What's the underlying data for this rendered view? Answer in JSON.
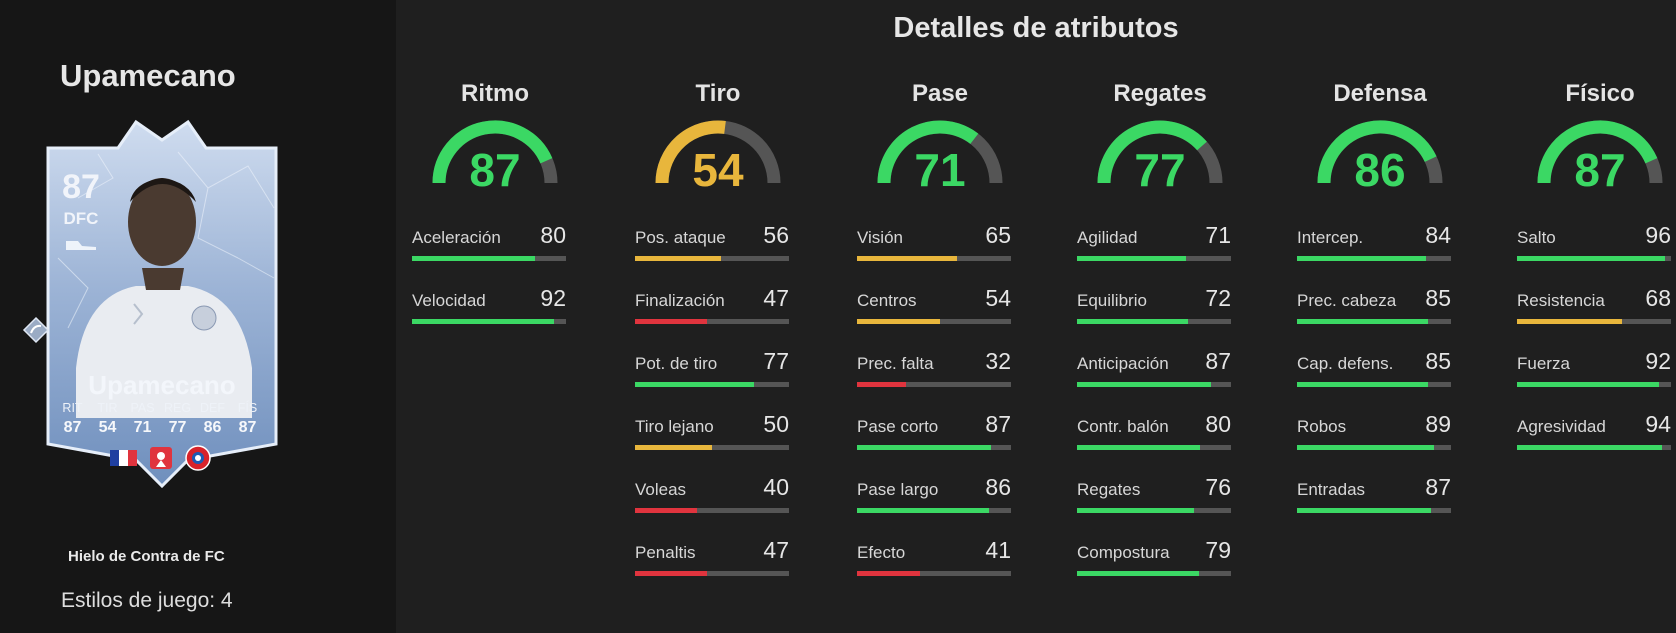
{
  "player": {
    "name": "Upamecano",
    "rating": "87",
    "position": "DFC",
    "card_name": "Upamecano",
    "stat_labels": [
      "RIT",
      "TIR",
      "PAS",
      "REG",
      "DEF",
      "FÍS"
    ],
    "stat_values": [
      "87",
      "54",
      "71",
      "77",
      "86",
      "87"
    ],
    "promo": "Hielo de Contra de FC",
    "playstyles": "Estilos de juego: 4"
  },
  "title": "Detalles de atributos",
  "colors": {
    "high": "#3bd864",
    "mid": "#e8b63c",
    "low": "#e0343e",
    "track": "#555555"
  },
  "categories": [
    {
      "name": "Ritmo",
      "value": 87,
      "stats": [
        {
          "name": "Aceleración",
          "value": 80
        },
        {
          "name": "Velocidad",
          "value": 92
        }
      ]
    },
    {
      "name": "Tiro",
      "value": 54,
      "stats": [
        {
          "name": "Pos. ataque",
          "value": 56
        },
        {
          "name": "Finalización",
          "value": 47
        },
        {
          "name": "Pot. de tiro",
          "value": 77
        },
        {
          "name": "Tiro lejano",
          "value": 50
        },
        {
          "name": "Voleas",
          "value": 40
        },
        {
          "name": "Penaltis",
          "value": 47
        }
      ]
    },
    {
      "name": "Pase",
      "value": 71,
      "stats": [
        {
          "name": "Visión",
          "value": 65
        },
        {
          "name": "Centros",
          "value": 54
        },
        {
          "name": "Prec. falta",
          "value": 32
        },
        {
          "name": "Pase corto",
          "value": 87
        },
        {
          "name": "Pase largo",
          "value": 86
        },
        {
          "name": "Efecto",
          "value": 41
        }
      ]
    },
    {
      "name": "Regates",
      "value": 77,
      "stats": [
        {
          "name": "Agilidad",
          "value": 71
        },
        {
          "name": "Equilibrio",
          "value": 72
        },
        {
          "name": "Anticipación",
          "value": 87
        },
        {
          "name": "Contr. balón",
          "value": 80
        },
        {
          "name": "Regates",
          "value": 76
        },
        {
          "name": "Compostura",
          "value": 79
        }
      ]
    },
    {
      "name": "Defensa",
      "value": 86,
      "stats": [
        {
          "name": "Intercep.",
          "value": 84
        },
        {
          "name": "Prec. cabeza",
          "value": 85
        },
        {
          "name": "Cap. defens.",
          "value": 85
        },
        {
          "name": "Robos",
          "value": 89
        },
        {
          "name": "Entradas",
          "value": 87
        }
      ]
    },
    {
      "name": "Físico",
      "value": 87,
      "stats": [
        {
          "name": "Salto",
          "value": 96
        },
        {
          "name": "Resistencia",
          "value": 68
        },
        {
          "name": "Fuerza",
          "value": 92
        },
        {
          "name": "Agresividad",
          "value": 94
        }
      ]
    }
  ]
}
